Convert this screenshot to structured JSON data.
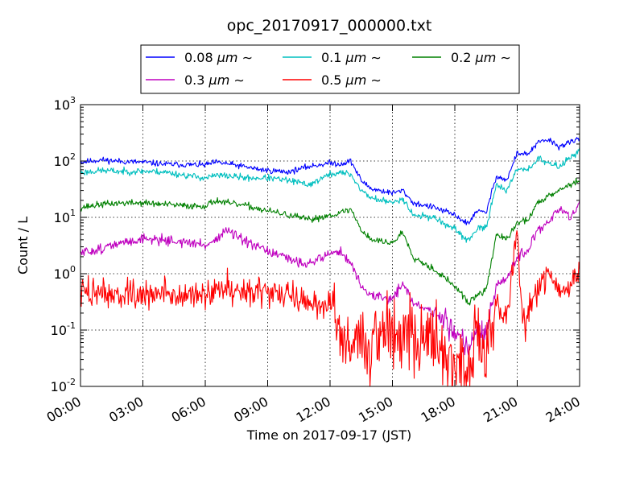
{
  "chart_data": {
    "type": "line",
    "title": "opc_20170917_000000.txt",
    "xlabel": "Time on 2017-09-17 (JST)",
    "ylabel": "Count / L",
    "yscale": "log",
    "ylim": [
      0.01,
      1000
    ],
    "y_ticks": [
      {
        "value": 1000,
        "base": "10",
        "exp": "3"
      },
      {
        "value": 100,
        "base": "10",
        "exp": "2"
      },
      {
        "value": 10,
        "base": "10",
        "exp": "1"
      },
      {
        "value": 1,
        "base": "10",
        "exp": "0"
      },
      {
        "value": 0.1,
        "base": "10",
        "exp": "-1"
      },
      {
        "value": 0.01,
        "base": "10",
        "exp": "-2"
      }
    ],
    "xlim": [
      "00:00",
      "24:00"
    ],
    "x_ticks": [
      "00:00",
      "03:00",
      "06:00",
      "09:00",
      "12:00",
      "15:00",
      "18:00",
      "21:00",
      "24:00"
    ],
    "grid": true,
    "legend": {
      "placement": "top",
      "columns": 3
    },
    "series": [
      {
        "name_text": "0.08 ",
        "name_unit": "μm ∼",
        "color": "#0000ff",
        "points": [
          [
            "00:00",
            95
          ],
          [
            "01:00",
            105
          ],
          [
            "02:00",
            98
          ],
          [
            "03:00",
            95
          ],
          [
            "04:00",
            88
          ],
          [
            "05:00",
            86
          ],
          [
            "06:00",
            85
          ],
          [
            "06:30",
            95
          ],
          [
            "07:00",
            90
          ],
          [
            "08:00",
            78
          ],
          [
            "08:30",
            72
          ],
          [
            "09:00",
            68
          ],
          [
            "10:00",
            64
          ],
          [
            "11:00",
            80
          ],
          [
            "12:00",
            92
          ],
          [
            "12:30",
            88
          ],
          [
            "13:00",
            100
          ],
          [
            "13:30",
            45
          ],
          [
            "14:00",
            32
          ],
          [
            "15:00",
            27
          ],
          [
            "15:30",
            30
          ],
          [
            "16:00",
            18
          ],
          [
            "17:00",
            15
          ],
          [
            "18:00",
            11
          ],
          [
            "18:40",
            7.5
          ],
          [
            "19:00",
            13
          ],
          [
            "19:30",
            12
          ],
          [
            "20:00",
            55
          ],
          [
            "20:30",
            45
          ],
          [
            "21:00",
            140
          ],
          [
            "21:30",
            130
          ],
          [
            "22:00",
            210
          ],
          [
            "22:30",
            240
          ],
          [
            "23:00",
            180
          ],
          [
            "23:30",
            210
          ],
          [
            "24:00",
            250
          ]
        ]
      },
      {
        "name_text": "0.1 ",
        "name_unit": "μm ∼",
        "color": "#00bfbf",
        "points": [
          [
            "00:00",
            62
          ],
          [
            "01:00",
            68
          ],
          [
            "02:00",
            65
          ],
          [
            "03:00",
            66
          ],
          [
            "04:00",
            64
          ],
          [
            "05:00",
            56
          ],
          [
            "06:00",
            50
          ],
          [
            "06:30",
            55
          ],
          [
            "07:00",
            55
          ],
          [
            "08:00",
            50
          ],
          [
            "09:00",
            50
          ],
          [
            "10:00",
            45
          ],
          [
            "11:00",
            38
          ],
          [
            "12:00",
            58
          ],
          [
            "12:30",
            62
          ],
          [
            "13:00",
            58
          ],
          [
            "13:30",
            30
          ],
          [
            "14:00",
            22
          ],
          [
            "15:00",
            18
          ],
          [
            "15:30",
            22
          ],
          [
            "16:00",
            11
          ],
          [
            "17:00",
            10
          ],
          [
            "18:00",
            6
          ],
          [
            "18:40",
            3.8
          ],
          [
            "19:00",
            6
          ],
          [
            "19:30",
            6.5
          ],
          [
            "20:00",
            40
          ],
          [
            "20:30",
            28
          ],
          [
            "21:00",
            75
          ],
          [
            "21:30",
            70
          ],
          [
            "22:00",
            110
          ],
          [
            "22:30",
            90
          ],
          [
            "23:00",
            80
          ],
          [
            "23:30",
            110
          ],
          [
            "24:00",
            160
          ]
        ]
      },
      {
        "name_text": "0.2 ",
        "name_unit": "μm ∼",
        "color": "#008000",
        "points": [
          [
            "00:00",
            15
          ],
          [
            "01:00",
            17
          ],
          [
            "02:00",
            18
          ],
          [
            "03:00",
            18
          ],
          [
            "04:00",
            17
          ],
          [
            "05:00",
            16
          ],
          [
            "06:00",
            16
          ],
          [
            "06:30",
            20
          ],
          [
            "07:00",
            18
          ],
          [
            "08:00",
            16
          ],
          [
            "09:00",
            13
          ],
          [
            "10:00",
            11
          ],
          [
            "11:00",
            9
          ],
          [
            "12:00",
            11
          ],
          [
            "12:30",
            12
          ],
          [
            "13:00",
            14
          ],
          [
            "13:30",
            6
          ],
          [
            "14:00",
            4
          ],
          [
            "15:00",
            3.5
          ],
          [
            "15:30",
            5.5
          ],
          [
            "16:00",
            2
          ],
          [
            "17:00",
            1.2
          ],
          [
            "18:00",
            0.6
          ],
          [
            "18:40",
            0.3
          ],
          [
            "19:00",
            0.4
          ],
          [
            "19:30",
            0.5
          ],
          [
            "20:00",
            5
          ],
          [
            "20:30",
            4
          ],
          [
            "21:00",
            8
          ],
          [
            "21:30",
            9
          ],
          [
            "22:00",
            18
          ],
          [
            "22:30",
            25
          ],
          [
            "23:00",
            30
          ],
          [
            "23:30",
            38
          ],
          [
            "24:00",
            45
          ]
        ]
      },
      {
        "name_text": "0.3 ",
        "name_unit": "μm ∼",
        "color": "#bf00bf",
        "points": [
          [
            "00:00",
            2.3
          ],
          [
            "01:00",
            2.8
          ],
          [
            "02:00",
            3.5
          ],
          [
            "03:00",
            4.2
          ],
          [
            "04:00",
            4
          ],
          [
            "05:00",
            3.6
          ],
          [
            "06:00",
            3.2
          ],
          [
            "06:30",
            4
          ],
          [
            "07:00",
            6
          ],
          [
            "08:00",
            3.5
          ],
          [
            "09:00",
            2.5
          ],
          [
            "10:00",
            1.8
          ],
          [
            "11:00",
            1.5
          ],
          [
            "12:00",
            2.3
          ],
          [
            "12:30",
            2.5
          ],
          [
            "13:00",
            1.5
          ],
          [
            "13:30",
            0.6
          ],
          [
            "14:00",
            0.4
          ],
          [
            "15:00",
            0.35
          ],
          [
            "15:30",
            0.7
          ],
          [
            "16:00",
            0.3
          ],
          [
            "17:00",
            0.2
          ],
          [
            "18:00",
            0.1
          ],
          [
            "18:40",
            0.05
          ],
          [
            "19:00",
            0.1
          ],
          [
            "19:30",
            0.08
          ],
          [
            "20:00",
            0.6
          ],
          [
            "20:30",
            0.8
          ],
          [
            "21:00",
            2
          ],
          [
            "21:30",
            2.5
          ],
          [
            "22:00",
            6
          ],
          [
            "22:30",
            8
          ],
          [
            "23:00",
            15
          ],
          [
            "23:30",
            10
          ],
          [
            "24:00",
            16
          ]
        ]
      },
      {
        "name_text": "0.5 ",
        "name_unit": "μm ∼",
        "color": "#ff0000",
        "points": [
          [
            "00:00",
            0.45
          ],
          [
            "01:00",
            0.5
          ],
          [
            "02:00",
            0.4
          ],
          [
            "03:00",
            0.4
          ],
          [
            "04:00",
            0.45
          ],
          [
            "05:00",
            0.4
          ],
          [
            "06:00",
            0.4
          ],
          [
            "06:30",
            0.5
          ],
          [
            "07:00",
            0.6
          ],
          [
            "08:00",
            0.5
          ],
          [
            "09:00",
            0.5
          ],
          [
            "10:00",
            0.4
          ],
          [
            "11:00",
            0.3
          ],
          [
            "12:00",
            0.3
          ],
          [
            "12:30",
            0.1
          ],
          [
            "13:00",
            0.05
          ],
          [
            "13:30",
            0.08
          ],
          [
            "14:00",
            0.05
          ],
          [
            "15:00",
            0.1
          ],
          [
            "15:30",
            0.15
          ],
          [
            "16:00",
            0.1
          ],
          [
            "17:00",
            0.05
          ],
          [
            "18:00",
            0.03
          ],
          [
            "18:40",
            0.02
          ],
          [
            "19:00",
            0.05
          ],
          [
            "19:30",
            0.04
          ],
          [
            "20:00",
            0.3
          ],
          [
            "20:30",
            0.2
          ],
          [
            "21:00",
            5
          ],
          [
            "21:15",
            0.1
          ],
          [
            "21:30",
            0.25
          ],
          [
            "22:00",
            0.5
          ],
          [
            "22:30",
            1.1
          ],
          [
            "23:00",
            0.5
          ],
          [
            "23:30",
            0.6
          ],
          [
            "24:00",
            1.5
          ]
        ]
      }
    ]
  }
}
